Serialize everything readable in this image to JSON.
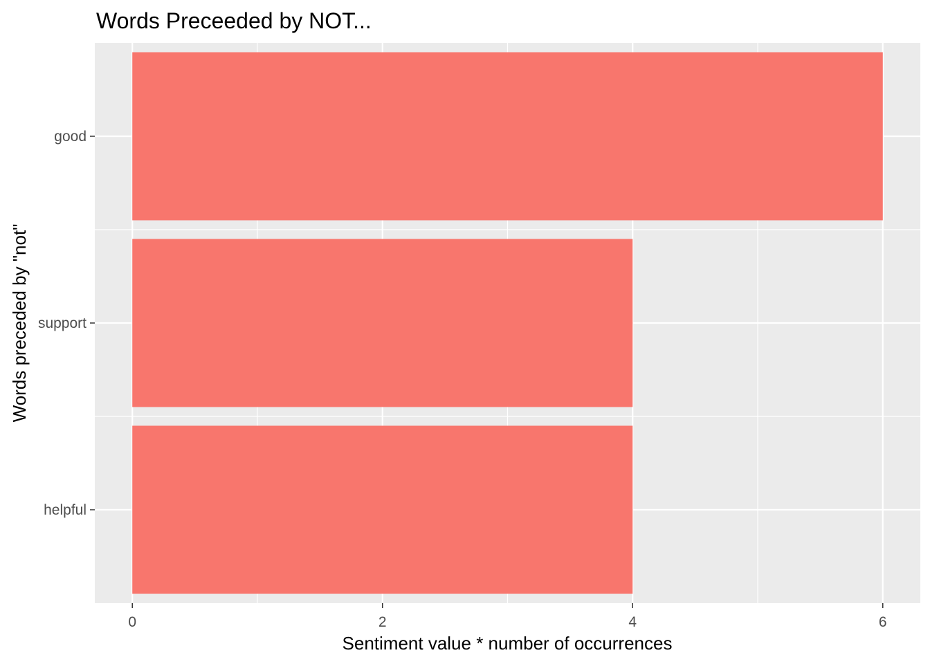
{
  "chart_data": {
    "type": "bar",
    "orientation": "horizontal",
    "title": "Words Preceeded by NOT...",
    "xlabel": "Sentiment value * number of occurrences",
    "ylabel": "Words preceded by \"not\"",
    "categories": [
      "good",
      "support",
      "helpful"
    ],
    "values": [
      6,
      4,
      4
    ],
    "xlim": [
      -0.3,
      6.3
    ],
    "x_ticks": [
      0,
      2,
      4,
      6
    ],
    "grid": true,
    "legend": "none",
    "colors": {
      "bar": "#F8766D",
      "panel": "#EBEBEB",
      "grid": "#FFFFFF"
    }
  }
}
